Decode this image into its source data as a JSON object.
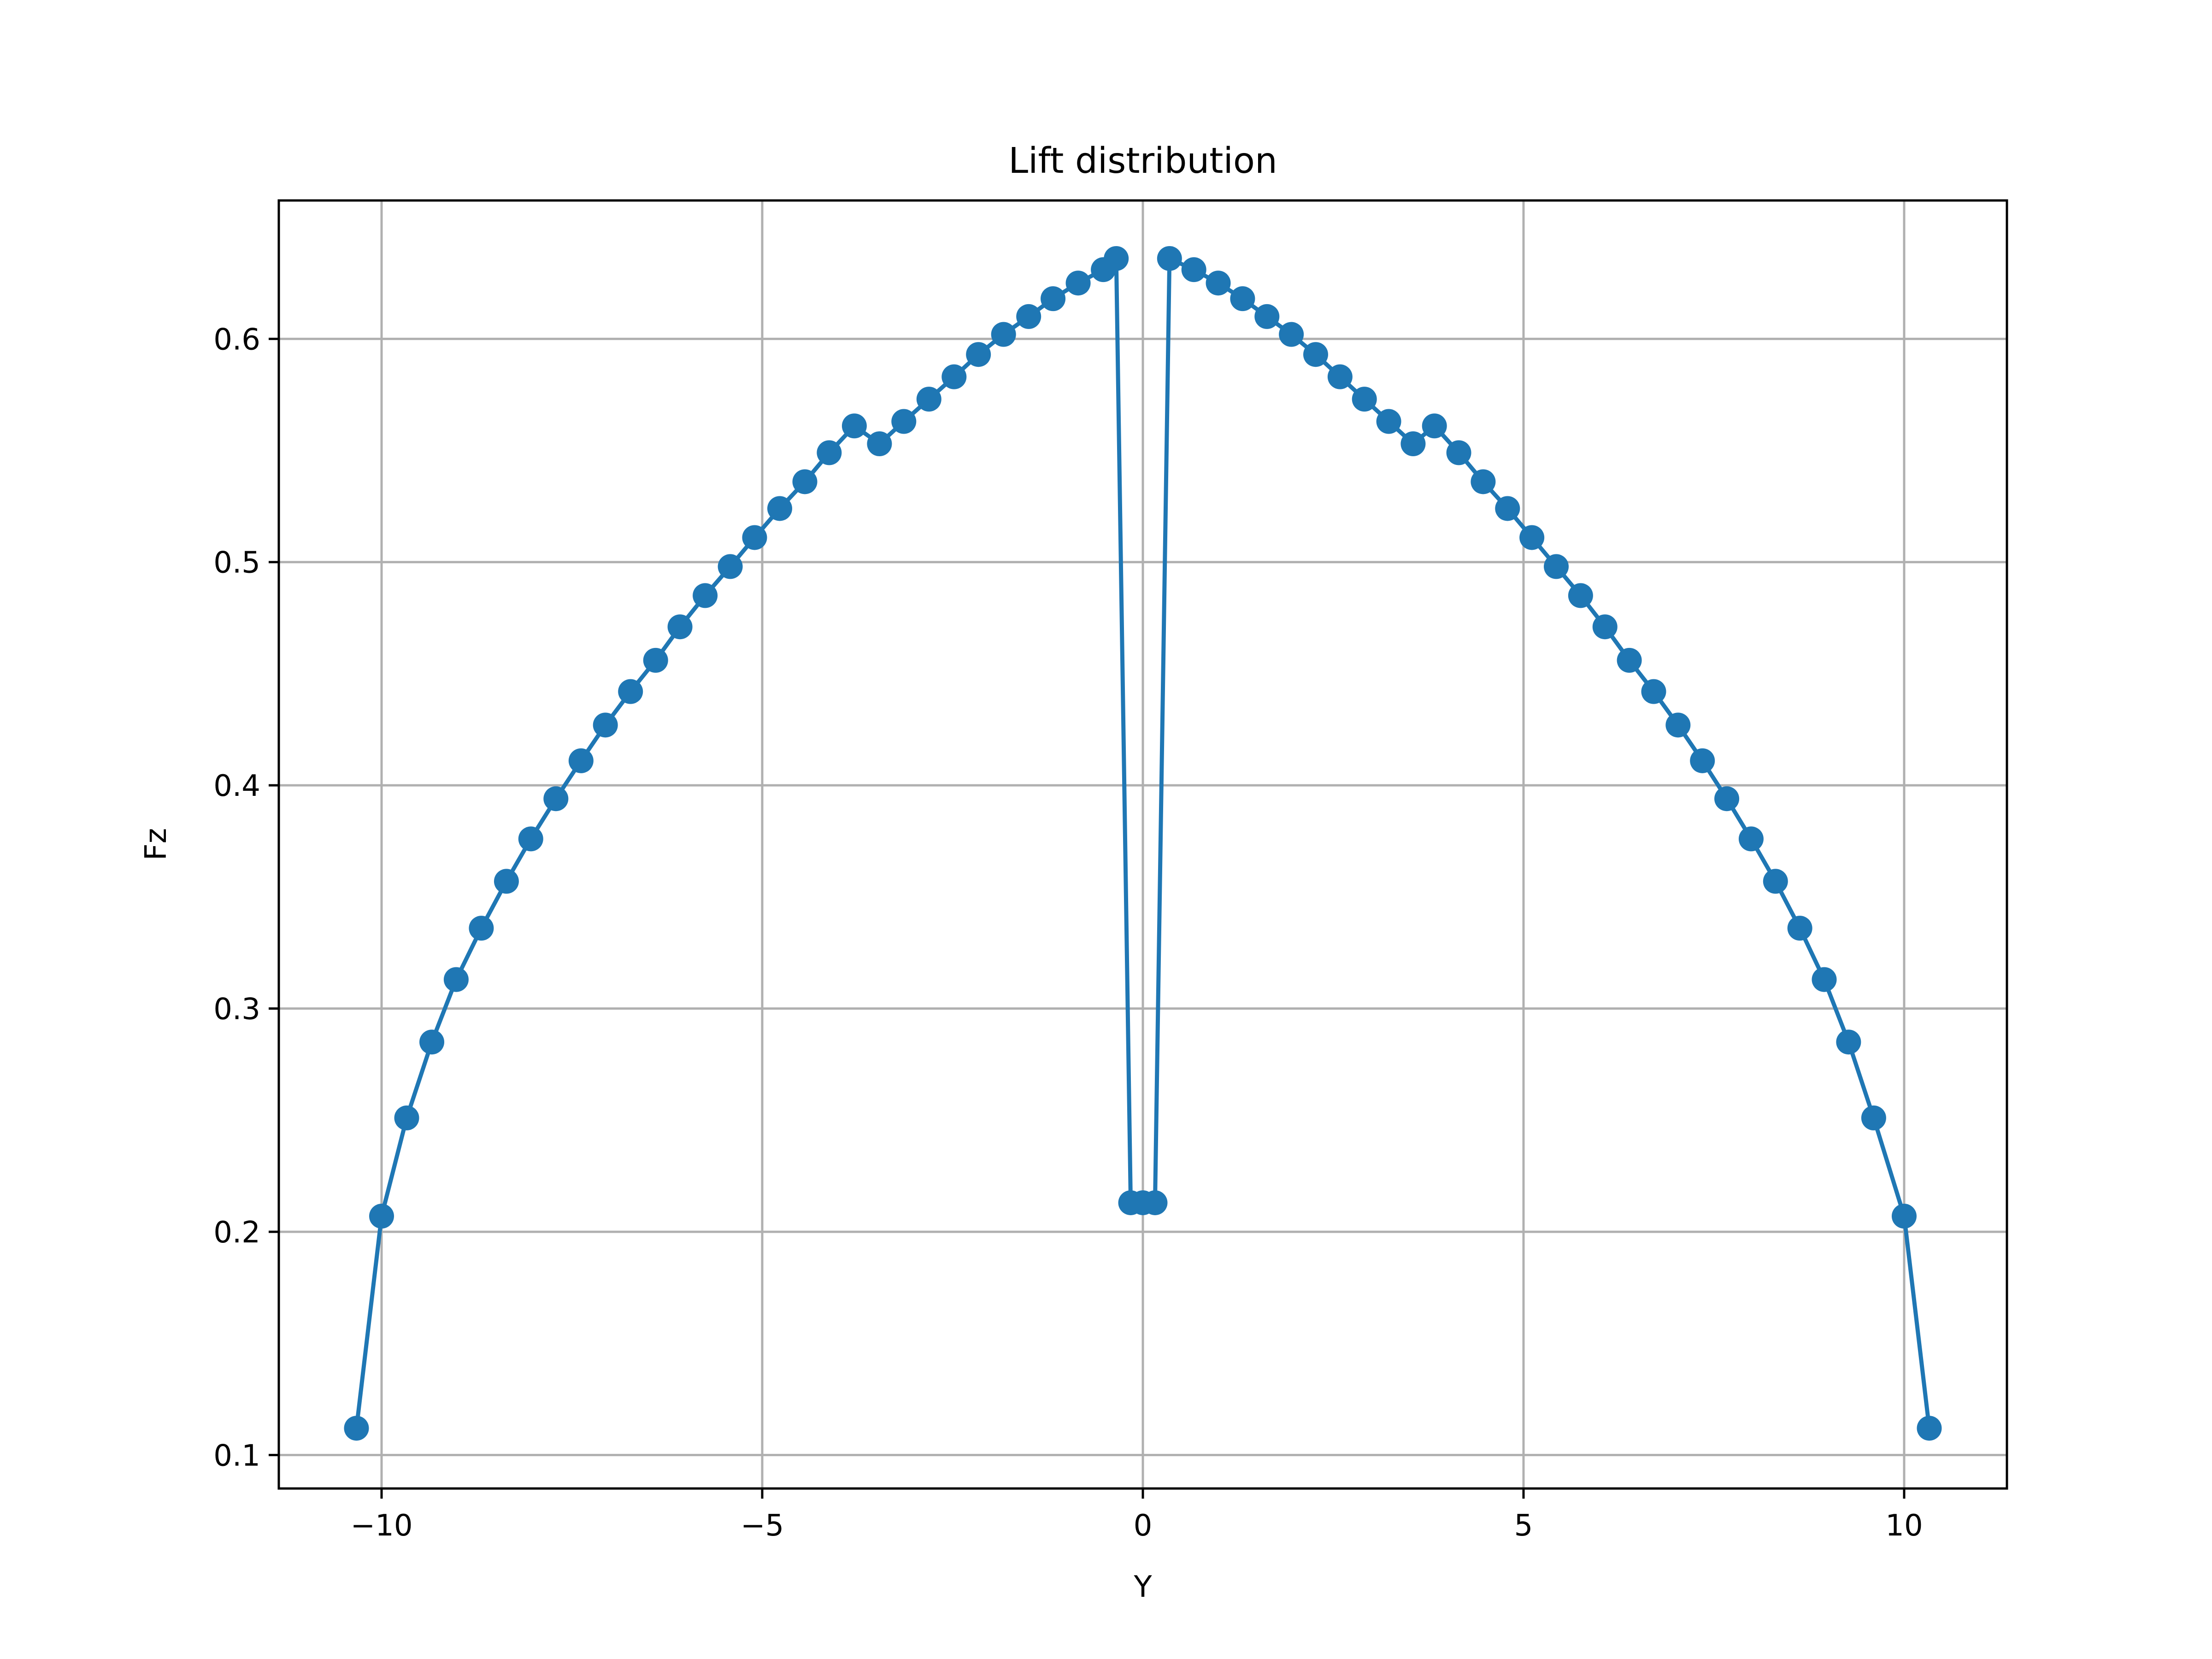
{
  "chart_data": {
    "type": "line",
    "title": "Lift distribution",
    "xlabel": "Y",
    "ylabel": "Fz",
    "xlim": [
      -11.35,
      11.35
    ],
    "ylim": [
      0.085,
      0.662
    ],
    "grid": true,
    "marker": "circle",
    "color": "#1f77b4",
    "xticks": [
      -10,
      -5,
      0,
      5,
      10
    ],
    "xtick_labels": [
      "−10",
      "−5",
      "0",
      "5",
      "10"
    ],
    "yticks": [
      0.1,
      0.2,
      0.3,
      0.4,
      0.5,
      0.6
    ],
    "ytick_labels": [
      "0.1",
      "0.2",
      "0.3",
      "0.4",
      "0.5",
      "0.6"
    ],
    "series": [
      {
        "x": [
          -10.33,
          -10.0,
          -9.67,
          -9.34,
          -9.02,
          -8.69,
          -8.36,
          -8.04,
          -7.71,
          -7.38,
          -7.06,
          -6.73,
          -6.4,
          -6.08,
          -5.75,
          -5.42,
          -5.1,
          -4.77,
          -4.44,
          -4.12,
          -3.79,
          -3.46,
          -3.14,
          -2.81,
          -2.48,
          -2.16,
          -1.83,
          -1.5,
          -1.18,
          -0.85,
          -0.52,
          -0.35,
          -0.16,
          0.0,
          0.16,
          0.35,
          0.67,
          0.99,
          1.31,
          1.63,
          1.95,
          2.27,
          2.59,
          2.91,
          3.23,
          3.55,
          3.83,
          4.15,
          4.47,
          4.79,
          5.11,
          5.43,
          5.75,
          6.07,
          6.39,
          6.71,
          7.03,
          7.35,
          7.67,
          7.99,
          8.31,
          8.63,
          8.95,
          9.27,
          9.6,
          10.0,
          10.33
        ],
        "y": [
          0.112,
          0.207,
          0.251,
          0.285,
          0.313,
          0.336,
          0.357,
          0.376,
          0.394,
          0.411,
          0.427,
          0.442,
          0.456,
          0.471,
          0.485,
          0.498,
          0.511,
          0.524,
          0.536,
          0.549,
          0.561,
          0.553,
          0.563,
          0.573,
          0.583,
          0.593,
          0.602,
          0.61,
          0.618,
          0.625,
          0.631,
          0.636,
          0.213,
          0.213,
          0.213,
          0.636,
          0.631,
          0.625,
          0.618,
          0.61,
          0.602,
          0.593,
          0.583,
          0.573,
          0.563,
          0.553,
          0.561,
          0.549,
          0.536,
          0.524,
          0.511,
          0.498,
          0.485,
          0.471,
          0.456,
          0.442,
          0.427,
          0.411,
          0.394,
          0.376,
          0.357,
          0.336,
          0.313,
          0.285,
          0.251,
          0.207,
          0.112
        ]
      }
    ]
  }
}
